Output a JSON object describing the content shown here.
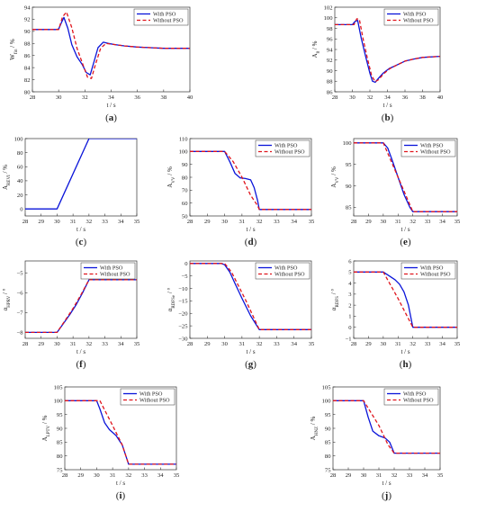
{
  "legend": {
    "with": "With PSO",
    "without": "Without PSO"
  },
  "colors": {
    "with": "#0a14d9",
    "without": "#e0141c"
  },
  "chart_data": [
    {
      "type": "line",
      "caption": "(a)",
      "ylabel": "W",
      "ylabel_sub": "fin",
      "ylabel_unit": " / %",
      "xlabel": "t / s",
      "xlim": [
        28,
        40
      ],
      "ylim": [
        80,
        94
      ],
      "xticks": [
        28,
        30,
        32,
        34,
        36,
        38,
        40
      ],
      "yticks": [
        80,
        82,
        84,
        86,
        88,
        90,
        92,
        94
      ],
      "legend": true,
      "series": [
        {
          "name": "With PSO",
          "x": [
            28,
            29.8,
            30.0,
            30.2,
            30.4,
            30.7,
            31.0,
            31.4,
            31.8,
            32.1,
            32.4,
            32.7,
            33.0,
            33.4,
            33.8,
            34.3,
            35,
            36,
            37,
            38,
            40
          ],
          "y": [
            90.3,
            90.3,
            90.4,
            91.4,
            92.3,
            90.5,
            87.8,
            85.8,
            84.5,
            83.2,
            82.8,
            85.0,
            87.3,
            88.2,
            88.0,
            87.8,
            87.6,
            87.4,
            87.3,
            87.2,
            87.2
          ]
        },
        {
          "name": "Without PSO",
          "x": [
            28,
            30.0,
            30.3,
            30.6,
            31.0,
            31.4,
            31.8,
            32.2,
            32.5,
            32.8,
            33.2,
            33.6,
            34.0,
            35,
            36,
            37,
            38,
            40
          ],
          "y": [
            90.3,
            90.3,
            92.4,
            93.2,
            90.6,
            87.2,
            84.8,
            82.4,
            82.2,
            84.5,
            87.2,
            88.0,
            87.9,
            87.6,
            87.4,
            87.3,
            87.2,
            87.2
          ]
        }
      ]
    },
    {
      "type": "line",
      "caption": "(b)",
      "ylabel": "A",
      "ylabel_sub": "8",
      "ylabel_unit": " / %",
      "xlabel": "t / s",
      "xlim": [
        28,
        40
      ],
      "ylim": [
        86,
        102
      ],
      "xticks": [
        28,
        30,
        32,
        34,
        36,
        38,
        40
      ],
      "yticks": [
        86,
        88,
        90,
        92,
        94,
        96,
        98,
        100,
        102
      ],
      "legend": true,
      "series": [
        {
          "name": "With PSO",
          "x": [
            28,
            30.0,
            30.3,
            30.6,
            31.0,
            31.5,
            32.0,
            32.3,
            32.6,
            33.0,
            33.5,
            34.2,
            35,
            36,
            37,
            38,
            40
          ],
          "y": [
            98.7,
            98.7,
            99.3,
            99.5,
            96.2,
            92.8,
            89.5,
            88.0,
            87.8,
            88.6,
            89.5,
            90.4,
            91.0,
            91.8,
            92.2,
            92.5,
            92.7
          ]
        },
        {
          "name": "Without PSO",
          "x": [
            28,
            30.2,
            30.5,
            30.8,
            31.2,
            31.7,
            32.2,
            32.6,
            33.0,
            33.5,
            34.2,
            35,
            36,
            37,
            38,
            40
          ],
          "y": [
            98.7,
            98.7,
            99.8,
            99.7,
            96.2,
            92.4,
            89.0,
            87.9,
            88.3,
            89.3,
            90.3,
            91.0,
            91.8,
            92.2,
            92.5,
            92.7
          ]
        }
      ]
    },
    {
      "type": "line",
      "caption": "(c)",
      "ylabel": "A",
      "ylabel_sub": "REVI",
      "ylabel_unit": " / %",
      "xlabel": "t / s",
      "xlim": [
        28,
        35
      ],
      "ylim": [
        -10,
        100
      ],
      "xticks": [
        28,
        29,
        30,
        31,
        32,
        33,
        34,
        35
      ],
      "yticks": [
        0,
        20,
        40,
        60,
        80,
        100
      ],
      "legend": false,
      "series": [
        {
          "name": "With PSO",
          "x": [
            28,
            30,
            32,
            35
          ],
          "y": [
            0,
            0,
            100,
            100
          ]
        }
      ]
    },
    {
      "type": "line",
      "caption": "(d)",
      "ylabel": "A",
      "ylabel_sub": "VV",
      "ylabel_unit": " / %",
      "xlabel": "t / s",
      "xlim": [
        28,
        35
      ],
      "ylim": [
        50,
        110
      ],
      "xticks": [
        28,
        29,
        30,
        31,
        32,
        33,
        34,
        35
      ],
      "yticks": [
        50,
        60,
        70,
        80,
        90,
        100,
        110
      ],
      "legend": true,
      "series": [
        {
          "name": "With PSO",
          "x": [
            28,
            30.0,
            30.3,
            30.6,
            30.9,
            31.2,
            31.5,
            31.7,
            31.9,
            32.0,
            35
          ],
          "y": [
            100,
            100,
            92,
            83,
            79.5,
            79,
            78,
            72,
            62,
            55,
            55
          ]
        },
        {
          "name": "Without PSO",
          "x": [
            28,
            30.0,
            30.5,
            31.0,
            31.5,
            31.9,
            32.0,
            35
          ],
          "y": [
            100,
            100,
            92,
            80,
            66,
            58,
            55,
            55
          ]
        }
      ]
    },
    {
      "type": "line",
      "caption": "(e)",
      "ylabel": "A",
      "ylabel_sub": "VV",
      "ylabel_unit": " / %",
      "xlabel": "t / s",
      "xlim": [
        28,
        35
      ],
      "ylim": [
        83,
        101
      ],
      "xticks": [
        28,
        29,
        30,
        31,
        32,
        33,
        34,
        35
      ],
      "yticks": [
        85,
        90,
        95,
        100
      ],
      "legend": true,
      "series": [
        {
          "name": "With PSO",
          "x": [
            28,
            30.0,
            30.3,
            30.6,
            31.0,
            31.4,
            31.8,
            32.0,
            35
          ],
          "y": [
            100,
            100,
            98.8,
            96.0,
            92.0,
            88.0,
            85.0,
            84.0,
            84.0
          ]
        },
        {
          "name": "Without PSO",
          "x": [
            28,
            30.0,
            31.0,
            32.0,
            35
          ],
          "y": [
            100,
            100,
            92,
            84,
            84
          ]
        }
      ]
    },
    {
      "type": "line",
      "caption": "(f)",
      "ylabel": "α",
      "ylabel_sub": "HPRV",
      "ylabel_unit": " / °",
      "xlabel": "t / s",
      "xlim": [
        28,
        35
      ],
      "ylim": [
        -8.3,
        -4.4
      ],
      "xticks": [
        28,
        29,
        30,
        31,
        32,
        33,
        34,
        35
      ],
      "yticks": [
        -8,
        -7,
        -6,
        -5
      ],
      "legend": true,
      "series": [
        {
          "name": "With PSO",
          "x": [
            28,
            30.0,
            30.4,
            30.8,
            31.2,
            31.6,
            32.0,
            35
          ],
          "y": [
            -8,
            -8,
            -7.55,
            -7.1,
            -6.6,
            -6.0,
            -5.35,
            -5.35
          ]
        },
        {
          "name": "Without PSO",
          "x": [
            28,
            30.0,
            30.5,
            31.0,
            31.5,
            32.0,
            35
          ],
          "y": [
            -8,
            -8,
            -7.4,
            -6.8,
            -6.1,
            -5.35,
            -5.35
          ]
        }
      ]
    },
    {
      "type": "line",
      "caption": "(g)",
      "ylabel": "α",
      "ylabel_sub": "RDFSe",
      "ylabel_unit": " / °",
      "xlabel": "t / s",
      "xlim": [
        28,
        35
      ],
      "ylim": [
        -30,
        1
      ],
      "xticks": [
        28,
        29,
        30,
        31,
        32,
        33,
        34,
        35
      ],
      "yticks": [
        -30,
        -25,
        -20,
        -15,
        -10,
        -5,
        0
      ],
      "legend": true,
      "series": [
        {
          "name": "With PSO",
          "x": [
            28,
            29.8,
            30.0,
            30.3,
            30.6,
            31.0,
            31.5,
            32.0,
            35
          ],
          "y": [
            0,
            0,
            -0.5,
            -3.5,
            -8,
            -14,
            -21,
            -26.5,
            -26.5
          ]
        },
        {
          "name": "Without PSO",
          "x": [
            28,
            30.0,
            30.4,
            30.8,
            31.2,
            31.6,
            32.0,
            35
          ],
          "y": [
            0,
            0,
            -3.5,
            -9,
            -14.5,
            -20.5,
            -26.5,
            -26.5
          ]
        }
      ]
    },
    {
      "type": "line",
      "caption": "(h)",
      "ylabel": "α",
      "ylabel_sub": "RDFS",
      "ylabel_unit": " / °",
      "xlabel": "t / s",
      "xlim": [
        28,
        35
      ],
      "ylim": [
        -1,
        6
      ],
      "xticks": [
        28,
        29,
        30,
        31,
        32,
        33,
        34,
        35
      ],
      "yticks": [
        -1,
        0,
        1,
        2,
        3,
        4,
        5,
        6
      ],
      "legend": true,
      "series": [
        {
          "name": "With PSO",
          "x": [
            28,
            30.0,
            30.4,
            30.8,
            31.1,
            31.4,
            31.7,
            32.0,
            35
          ],
          "y": [
            5,
            5,
            4.65,
            4.3,
            3.9,
            3.2,
            2.0,
            0,
            0
          ]
        },
        {
          "name": "Without PSO",
          "x": [
            28,
            30.0,
            31.0,
            32.0,
            35
          ],
          "y": [
            5,
            5,
            2.6,
            0,
            0
          ]
        }
      ]
    },
    {
      "type": "line",
      "caption": "(i)",
      "ylabel": "A",
      "ylabel_sub": "LPTV",
      "ylabel_unit": " / %",
      "xlabel": "t / s",
      "xlim": [
        28,
        35
      ],
      "ylim": [
        75,
        105
      ],
      "xticks": [
        28,
        29,
        30,
        31,
        32,
        33,
        34,
        35
      ],
      "yticks": [
        75,
        80,
        85,
        90,
        95,
        100,
        105
      ],
      "legend": true,
      "series": [
        {
          "name": "With PSO",
          "x": [
            28,
            30.0,
            30.2,
            30.5,
            30.8,
            31.2,
            31.6,
            32.0,
            35
          ],
          "y": [
            100,
            100,
            97,
            92,
            89.5,
            87.5,
            84,
            77,
            77
          ]
        },
        {
          "name": "Without PSO",
          "x": [
            28,
            30.2,
            31.0,
            31.6,
            32.0,
            35
          ],
          "y": [
            100,
            100,
            91,
            84,
            77,
            77
          ]
        }
      ]
    },
    {
      "type": "line",
      "caption": "(j)",
      "ylabel": "A",
      "ylabel_sub": "HNZ",
      "ylabel_unit": " / %",
      "xlabel": "t / s",
      "xlim": [
        28,
        35
      ],
      "ylim": [
        75,
        105
      ],
      "xticks": [
        28,
        29,
        30,
        31,
        32,
        33,
        34,
        35
      ],
      "yticks": [
        75,
        80,
        85,
        90,
        95,
        100,
        105
      ],
      "legend": true,
      "series": [
        {
          "name": "With PSO",
          "x": [
            28,
            30.0,
            30.3,
            30.6,
            31.0,
            31.4,
            31.7,
            32.0,
            35
          ],
          "y": [
            100,
            100,
            94,
            89,
            87.3,
            86.5,
            85,
            81,
            81
          ]
        },
        {
          "name": "Without PSO",
          "x": [
            28,
            30.0,
            31.0,
            31.6,
            32.0,
            35
          ],
          "y": [
            100,
            100,
            91,
            84,
            81,
            81
          ]
        }
      ]
    }
  ]
}
